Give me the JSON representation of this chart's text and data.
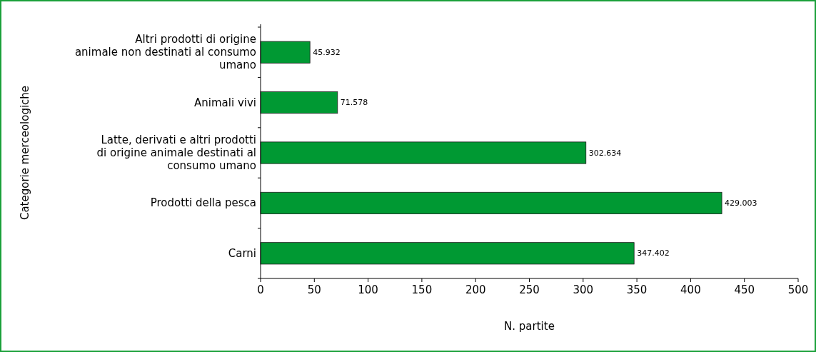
{
  "chart_data": {
    "type": "bar",
    "orientation": "horizontal",
    "xlabel": "N. partite",
    "ylabel": "Categorie merceologiche",
    "categories": [
      "Altri prodotti di origine animale non destinati al consumo umano",
      "Animali vivi",
      "Latte, derivati e altri prodotti di origine animale destinati al consumo umano",
      "Prodotti della pesca",
      "Carni"
    ],
    "values": [
      45.932,
      71.578,
      302.634,
      429.003,
      347.402
    ],
    "color": "#009933",
    "xlim": [
      0,
      500
    ],
    "xticks": [
      0,
      50,
      100,
      150,
      200,
      250,
      300,
      350,
      400,
      450,
      500
    ],
    "data_labels": true
  }
}
